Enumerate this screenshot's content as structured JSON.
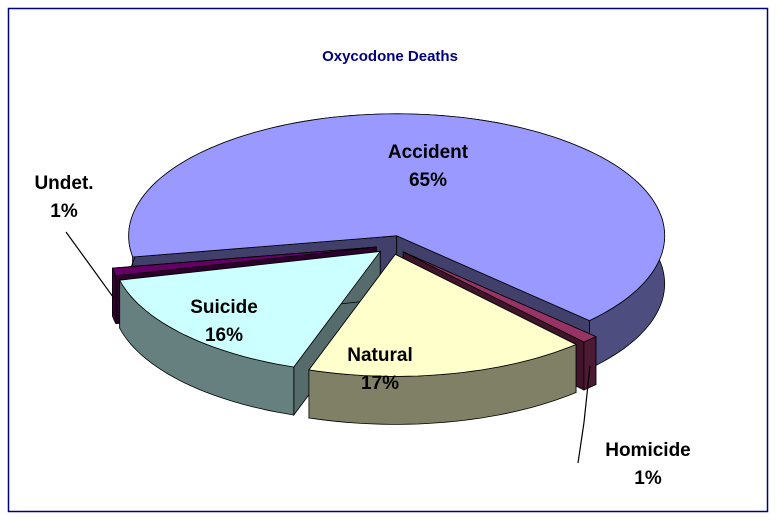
{
  "chart_data": {
    "type": "pie",
    "title": "Oxycodone Deaths",
    "categories": [
      "Accident",
      "Homicide",
      "Natural",
      "Suicide",
      "Undet."
    ],
    "values": [
      65,
      1,
      17,
      16,
      1
    ],
    "value_labels": [
      "65%",
      "1%",
      "17%",
      "16%",
      "1%"
    ],
    "colors": [
      "#9999ff",
      "#993366",
      "#ffffcc",
      "#ccffff",
      "#660066"
    ]
  }
}
